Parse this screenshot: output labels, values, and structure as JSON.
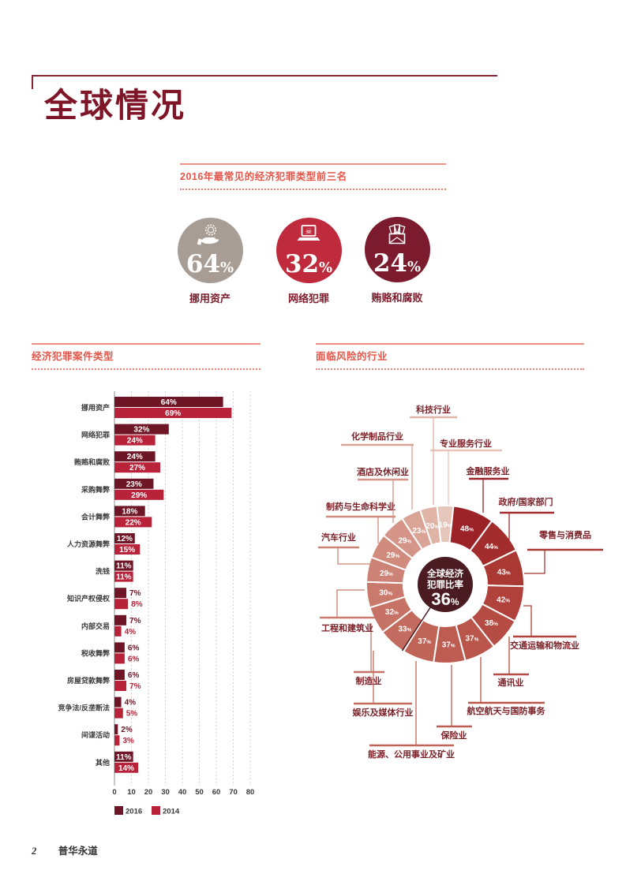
{
  "page": {
    "title": "全球情况",
    "footer_page_number": "2",
    "footer_brand": "普华永道"
  },
  "colors": {
    "accent_coral": "#e4564a",
    "rule_maroon": "#8d2332",
    "title_maroon": "#7e1627",
    "text_dark": "#3a3a3a",
    "industry_label": "#7c2128",
    "bar_2016": "#6e1625",
    "bar_2014": "#b9233a",
    "donut_center_bg": "#4a1b21",
    "needle": "#4a1b21"
  },
  "top3": {
    "header": "2016年最常见的经济犯罪类型前三名",
    "items": [
      {
        "value": "64",
        "unit": "%",
        "label": "挪用资产",
        "icon": "hand-coin-icon",
        "color": "#a89d94"
      },
      {
        "value": "32",
        "unit": "%",
        "label": "网络犯罪",
        "icon": "laptop-skull-icon",
        "color": "#bf2b3c"
      },
      {
        "value": "24",
        "unit": "%",
        "label": "贿赂和腐败",
        "icon": "envelope-money-icon",
        "color": "#7c1b2d"
      }
    ]
  },
  "crime_types": {
    "header": "经济犯罪案件类型",
    "chart_data": {
      "type": "bar",
      "orientation": "horizontal",
      "categories": [
        "挪用资产",
        "网络犯罪",
        "贿赂和腐败",
        "采购舞弊",
        "会计舞弊",
        "人力资源舞弊",
        "洗钱",
        "知识产权侵权",
        "内部交易",
        "税收舞弊",
        "房屋贷款舞弊",
        "竞争法/反垄断法",
        "间谍活动",
        "其他"
      ],
      "series": [
        {
          "name": "2016",
          "color": "#6e1625",
          "values": [
            64,
            32,
            24,
            23,
            18,
            12,
            11,
            7,
            7,
            6,
            6,
            4,
            2,
            11
          ]
        },
        {
          "name": "2014",
          "color": "#b9233a",
          "values": [
            69,
            24,
            27,
            29,
            22,
            15,
            11,
            8,
            4,
            6,
            7,
            5,
            3,
            14
          ]
        }
      ],
      "value_suffix": "%",
      "xticks": [
        0,
        10,
        20,
        30,
        40,
        50,
        60,
        70,
        80
      ],
      "xlim": [
        0,
        80
      ],
      "grid": "dashed-vertical",
      "legend_position": "bottom"
    }
  },
  "industries": {
    "header": "面临风险的行业",
    "chart_data": {
      "type": "donut",
      "center": {
        "title_line1": "全球经济",
        "title_line2": "犯罪比率",
        "value": "36",
        "unit": "%"
      },
      "value_suffix": "%",
      "segments_clockwise_from_top": [
        {
          "label": "专业服务行业",
          "value": 19,
          "color": "#e6c6ba"
        },
        {
          "label": "金融服务业",
          "value": 48,
          "color": "#9b2227"
        },
        {
          "label": "政府/国家部门",
          "value": 44,
          "color": "#a32d2c"
        },
        {
          "label": "零售与消费品",
          "value": 43,
          "color": "#aa3833"
        },
        {
          "label": "交通运输和物流业",
          "value": 42,
          "color": "#b0423b"
        },
        {
          "label": "通讯业",
          "value": 38,
          "color": "#b54c43"
        },
        {
          "label": "航空航天与国防事务",
          "value": 37,
          "color": "#b9554a"
        },
        {
          "label": "保险业",
          "value": 37,
          "color": "#bd5c51"
        },
        {
          "label": "能源、公用事业及矿业",
          "value": 37,
          "color": "#c06457"
        },
        {
          "label": "娱乐及媒体行业",
          "value": 33,
          "color": "#c36b5e"
        },
        {
          "label": "制造业",
          "value": 32,
          "color": "#c67365"
        },
        {
          "label": "工程和建筑业",
          "value": 30,
          "color": "#c97a6c"
        },
        {
          "label": "汽车行业",
          "value": 29,
          "color": "#cc8275"
        },
        {
          "label": "制药与生命科学业",
          "value": 29,
          "color": "#d08b7d"
        },
        {
          "label": "酒店及休闲业",
          "value": 29,
          "color": "#d49488"
        },
        {
          "label": "化学制品行业",
          "value": 23,
          "color": "#d9a495"
        },
        {
          "label": "科技行业",
          "value": 20,
          "color": "#dfb4a7"
        }
      ]
    }
  }
}
